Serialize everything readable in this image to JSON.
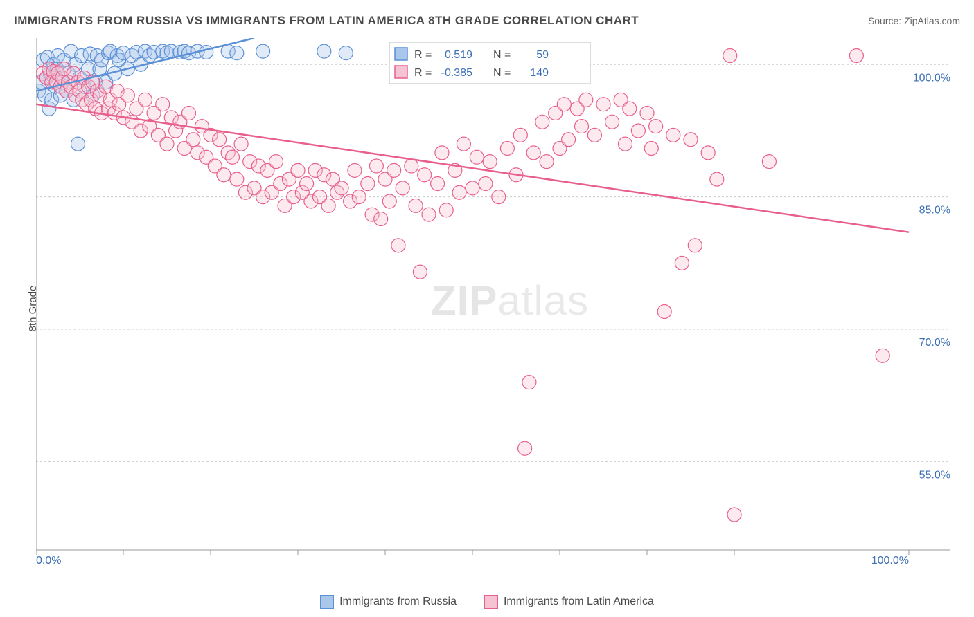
{
  "header": {
    "title": "IMMIGRANTS FROM RUSSIA VS IMMIGRANTS FROM LATIN AMERICA 8TH GRADE CORRELATION CHART",
    "source_label": "Source:",
    "source_value": "ZipAtlas.com"
  },
  "chart": {
    "type": "scatter",
    "ylabel": "8th Grade",
    "watermark_a": "ZIP",
    "watermark_b": "atlas",
    "background_color": "#ffffff",
    "grid_color": "#cccccc",
    "axis_color": "#999999",
    "tick_label_color": "#3b6fb6",
    "xlim": [
      0,
      100
    ],
    "ylim": [
      45,
      103
    ],
    "xtick_positions": [
      0,
      10,
      20,
      30,
      40,
      50,
      60,
      70,
      80,
      100
    ],
    "xtick_labels": {
      "0": "0.0%",
      "100": "100.0%"
    },
    "ytick_positions": [
      55,
      70,
      85,
      100
    ],
    "ytick_labels": [
      "55.0%",
      "70.0%",
      "85.0%",
      "100.0%"
    ],
    "marker_radius": 10,
    "marker_fill_opacity": 0.35,
    "marker_stroke_width": 1.2,
    "trend_line_width": 2.5,
    "series": [
      {
        "name": "Immigrants from Russia",
        "color_fill": "#a9c7eb",
        "color_stroke": "#5b8fd6",
        "trend": {
          "x1": 0,
          "y1": 97.0,
          "x2": 25,
          "y2": 103
        },
        "stats": {
          "R": "0.519",
          "N": "59"
        },
        "points": [
          [
            0.3,
            97.0
          ],
          [
            0.6,
            98.0
          ],
          [
            0.8,
            100.5
          ],
          [
            1.0,
            96.5
          ],
          [
            1.2,
            98.5
          ],
          [
            1.3,
            100.8
          ],
          [
            1.5,
            95.0
          ],
          [
            1.6,
            99.0
          ],
          [
            1.8,
            96.0
          ],
          [
            2.0,
            100.0
          ],
          [
            2.2,
            97.5
          ],
          [
            2.4,
            99.5
          ],
          [
            2.5,
            101.0
          ],
          [
            2.8,
            96.5
          ],
          [
            3.0,
            98.0
          ],
          [
            3.2,
            100.5
          ],
          [
            3.5,
            97.0
          ],
          [
            3.7,
            99.0
          ],
          [
            4.0,
            101.5
          ],
          [
            4.3,
            96.0
          ],
          [
            4.5,
            100.0
          ],
          [
            5.0,
            98.5
          ],
          [
            5.2,
            101.0
          ],
          [
            5.5,
            97.5
          ],
          [
            6.0,
            99.5
          ],
          [
            6.2,
            101.2
          ],
          [
            6.5,
            96.5
          ],
          [
            6.8,
            98.0
          ],
          [
            7.0,
            101.0
          ],
          [
            7.3,
            99.5
          ],
          [
            7.5,
            100.5
          ],
          [
            8.0,
            98.0
          ],
          [
            8.3,
            101.3
          ],
          [
            8.5,
            101.5
          ],
          [
            9.0,
            99.0
          ],
          [
            9.3,
            101.0
          ],
          [
            9.5,
            100.5
          ],
          [
            10.0,
            101.3
          ],
          [
            10.5,
            99.5
          ],
          [
            11.0,
            101.0
          ],
          [
            11.5,
            101.4
          ],
          [
            12.0,
            100.0
          ],
          [
            12.5,
            101.5
          ],
          [
            13.0,
            101.0
          ],
          [
            13.5,
            101.4
          ],
          [
            14.5,
            101.5
          ],
          [
            15.0,
            101.3
          ],
          [
            15.5,
            101.5
          ],
          [
            16.5,
            101.4
          ],
          [
            17.0,
            101.5
          ],
          [
            17.5,
            101.3
          ],
          [
            18.5,
            101.5
          ],
          [
            19.5,
            101.4
          ],
          [
            22.0,
            101.5
          ],
          [
            23.0,
            101.3
          ],
          [
            26.0,
            101.5
          ],
          [
            33.0,
            101.5
          ],
          [
            35.5,
            101.3
          ],
          [
            4.8,
            91.0
          ]
        ]
      },
      {
        "name": "Immigrants from Latin America",
        "color_fill": "#f5c3d1",
        "color_stroke": "#e85f8e",
        "trend": {
          "x1": 0,
          "y1": 95.5,
          "x2": 100,
          "y2": 81.0
        },
        "stats": {
          "R": "-0.385",
          "N": "149"
        },
        "points": [
          [
            0.8,
            99.0
          ],
          [
            1.2,
            98.5
          ],
          [
            1.5,
            99.5
          ],
          [
            1.8,
            98.0
          ],
          [
            2.0,
            99.2
          ],
          [
            2.3,
            98.0
          ],
          [
            2.5,
            99.0
          ],
          [
            2.8,
            97.5
          ],
          [
            3.0,
            98.5
          ],
          [
            3.2,
            99.5
          ],
          [
            3.5,
            97.0
          ],
          [
            3.7,
            98.0
          ],
          [
            4.0,
            97.5
          ],
          [
            4.3,
            99.0
          ],
          [
            4.5,
            96.5
          ],
          [
            4.8,
            98.0
          ],
          [
            5.0,
            97.0
          ],
          [
            5.3,
            96.0
          ],
          [
            5.5,
            98.5
          ],
          [
            5.8,
            95.5
          ],
          [
            6.0,
            97.5
          ],
          [
            6.3,
            96.0
          ],
          [
            6.5,
            98.0
          ],
          [
            6.8,
            95.0
          ],
          [
            7.0,
            97.0
          ],
          [
            7.3,
            96.5
          ],
          [
            7.5,
            94.5
          ],
          [
            8.0,
            97.5
          ],
          [
            8.3,
            95.0
          ],
          [
            8.5,
            96.0
          ],
          [
            9.0,
            94.5
          ],
          [
            9.3,
            97.0
          ],
          [
            9.5,
            95.5
          ],
          [
            10.0,
            94.0
          ],
          [
            10.5,
            96.5
          ],
          [
            11.0,
            93.5
          ],
          [
            11.5,
            95.0
          ],
          [
            12.0,
            92.5
          ],
          [
            12.5,
            96.0
          ],
          [
            13.0,
            93.0
          ],
          [
            13.5,
            94.5
          ],
          [
            14.0,
            92.0
          ],
          [
            14.5,
            95.5
          ],
          [
            15.0,
            91.0
          ],
          [
            15.5,
            94.0
          ],
          [
            16.0,
            92.5
          ],
          [
            16.5,
            93.5
          ],
          [
            17.0,
            90.5
          ],
          [
            17.5,
            94.5
          ],
          [
            18.0,
            91.5
          ],
          [
            18.5,
            90.0
          ],
          [
            19.0,
            93.0
          ],
          [
            19.5,
            89.5
          ],
          [
            20.0,
            92.0
          ],
          [
            20.5,
            88.5
          ],
          [
            21.0,
            91.5
          ],
          [
            21.5,
            87.5
          ],
          [
            22.0,
            90.0
          ],
          [
            22.5,
            89.5
          ],
          [
            23.0,
            87.0
          ],
          [
            23.5,
            91.0
          ],
          [
            24.0,
            85.5
          ],
          [
            24.5,
            89.0
          ],
          [
            25.0,
            86.0
          ],
          [
            25.5,
            88.5
          ],
          [
            26.0,
            85.0
          ],
          [
            26.5,
            88.0
          ],
          [
            27.0,
            85.5
          ],
          [
            27.5,
            89.0
          ],
          [
            28.0,
            86.5
          ],
          [
            28.5,
            84.0
          ],
          [
            29.0,
            87.0
          ],
          [
            29.5,
            85.0
          ],
          [
            30.0,
            88.0
          ],
          [
            30.5,
            85.5
          ],
          [
            31.0,
            86.5
          ],
          [
            31.5,
            84.5
          ],
          [
            32.0,
            88.0
          ],
          [
            32.5,
            85.0
          ],
          [
            33.0,
            87.5
          ],
          [
            33.5,
            84.0
          ],
          [
            34.0,
            87.0
          ],
          [
            34.5,
            85.5
          ],
          [
            35.0,
            86.0
          ],
          [
            36.0,
            84.5
          ],
          [
            36.5,
            88.0
          ],
          [
            37.0,
            85.0
          ],
          [
            38.0,
            86.5
          ],
          [
            38.5,
            83.0
          ],
          [
            39.0,
            88.5
          ],
          [
            39.5,
            82.5
          ],
          [
            40.0,
            87.0
          ],
          [
            40.5,
            84.5
          ],
          [
            41.0,
            88.0
          ],
          [
            41.5,
            79.5
          ],
          [
            42.0,
            86.0
          ],
          [
            43.0,
            88.5
          ],
          [
            43.5,
            84.0
          ],
          [
            44.0,
            76.5
          ],
          [
            44.5,
            87.5
          ],
          [
            45.0,
            83.0
          ],
          [
            46.0,
            86.5
          ],
          [
            46.5,
            90.0
          ],
          [
            47.0,
            83.5
          ],
          [
            48.0,
            88.0
          ],
          [
            48.5,
            85.5
          ],
          [
            49.0,
            91.0
          ],
          [
            50.0,
            86.0
          ],
          [
            50.5,
            89.5
          ],
          [
            51.5,
            86.5
          ],
          [
            52.0,
            89.0
          ],
          [
            53.0,
            85.0
          ],
          [
            54.0,
            90.5
          ],
          [
            55.0,
            87.5
          ],
          [
            55.5,
            92.0
          ],
          [
            56.0,
            56.5
          ],
          [
            56.5,
            64.0
          ],
          [
            57.0,
            90.0
          ],
          [
            58.0,
            93.5
          ],
          [
            58.5,
            89.0
          ],
          [
            59.5,
            94.5
          ],
          [
            60.0,
            90.5
          ],
          [
            60.5,
            95.5
          ],
          [
            61.0,
            91.5
          ],
          [
            62.0,
            95.0
          ],
          [
            62.5,
            93.0
          ],
          [
            63.0,
            96.0
          ],
          [
            64.0,
            92.0
          ],
          [
            65.0,
            95.5
          ],
          [
            66.0,
            93.5
          ],
          [
            67.0,
            96.0
          ],
          [
            67.5,
            91.0
          ],
          [
            68.0,
            95.0
          ],
          [
            69.0,
            92.5
          ],
          [
            70.0,
            94.5
          ],
          [
            70.5,
            90.5
          ],
          [
            71.0,
            93.0
          ],
          [
            72.0,
            72.0
          ],
          [
            73.0,
            92.0
          ],
          [
            74.0,
            77.5
          ],
          [
            75.0,
            91.5
          ],
          [
            75.5,
            79.5
          ],
          [
            77.0,
            90.0
          ],
          [
            78.0,
            87.0
          ],
          [
            79.5,
            101.0
          ],
          [
            80.0,
            49.0
          ],
          [
            84.0,
            89.0
          ],
          [
            94.0,
            101.0
          ],
          [
            97.0,
            67.0
          ]
        ]
      }
    ]
  }
}
